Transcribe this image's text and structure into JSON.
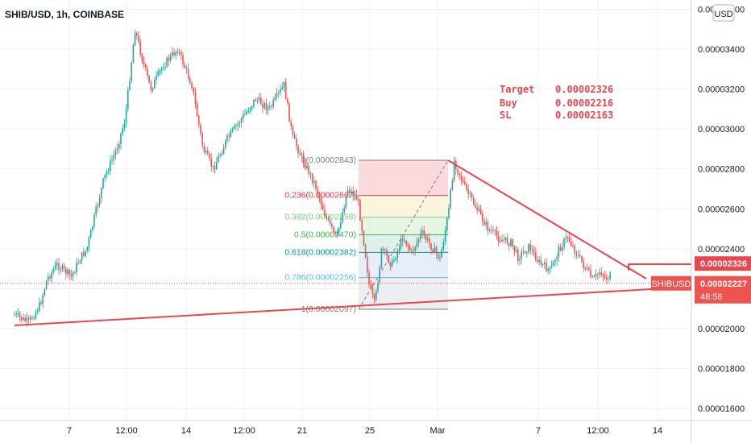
{
  "header": {
    "title": "SHIB/USD, 1h, COINBASE",
    "currency_button": "USD"
  },
  "colors": {
    "up": "#26a69a",
    "down": "#ef5350",
    "trendline": "#e8474f",
    "fib_0": "#787b86",
    "fib_236": "#f23645",
    "fib_382": "#81c784",
    "fib_5": "#4caf50",
    "fib_618": "#089981",
    "fib_786": "#64b5f6",
    "fib_1": "#787b86"
  },
  "annotation": {
    "lines": [
      {
        "label": "Target",
        "value": "0.00002326"
      },
      {
        "label": "Buy",
        "value": "0.00002216"
      },
      {
        "label": "SL",
        "value": "0.00002163"
      }
    ]
  },
  "price_tags": {
    "target": "0.00002326",
    "current": "0.00002227",
    "symbol": "SHIBUSD",
    "countdown": "48:56"
  },
  "chart_data": {
    "type": "candlestick",
    "title": "SHIB/USD, 1h, COINBASE",
    "y_axis": {
      "ylim": [
        1.55e-05,
        3.6e-05
      ],
      "ticks": [
        "0.00001600",
        "0.00001800",
        "0.00002000",
        "0.00002200",
        "0.00002400",
        "0.00002600",
        "0.00002800",
        "0.00003000",
        "0.00003200",
        "0.00003400",
        "0.00003600"
      ],
      "tick_values": [
        1.6e-05,
        1.8e-05,
        2e-05,
        2.2e-05,
        2.4e-05,
        2.6e-05,
        2.8e-05,
        3e-05,
        3.2e-05,
        3.4e-05,
        3.6e-05
      ],
      "position": "right"
    },
    "x_axis": {
      "ticks": [
        "7",
        "12:00",
        "14",
        "12:00",
        "21",
        "25",
        "Mar",
        "7",
        "12:00",
        "14"
      ],
      "tick_days": [
        7,
        10.5,
        14,
        17.5,
        21,
        25,
        29,
        36,
        39.5,
        43
      ]
    },
    "price_path": [
      [
        0,
        2.07e-05
      ],
      [
        1,
        2.03e-05
      ],
      [
        1.8,
        2.12e-05
      ],
      [
        2.3,
        2.25e-05
      ],
      [
        3,
        2.32e-05
      ],
      [
        4,
        2.26e-05
      ],
      [
        4.6,
        2.35e-05
      ],
      [
        5.1,
        2.4e-05
      ],
      [
        6.3,
        2.75e-05
      ],
      [
        7.2,
        2.9e-05
      ],
      [
        7.8,
        3.05e-05
      ],
      [
        8.5,
        3.5e-05
      ],
      [
        9,
        3.35e-05
      ],
      [
        9.6,
        3.2e-05
      ],
      [
        10.5,
        3.32e-05
      ],
      [
        11.5,
        3.4e-05
      ],
      [
        12.5,
        3.22e-05
      ],
      [
        13.3,
        2.9e-05
      ],
      [
        14,
        2.8e-05
      ],
      [
        15,
        2.95e-05
      ],
      [
        16,
        3.05e-05
      ],
      [
        17,
        3.15e-05
      ],
      [
        18,
        3.1e-05
      ],
      [
        19,
        3.22e-05
      ],
      [
        19.6,
        2.96e-05
      ],
      [
        20.3,
        2.85e-05
      ],
      [
        21.2,
        2.72e-05
      ],
      [
        22,
        2.55e-05
      ],
      [
        22.7,
        2.45e-05
      ],
      [
        23.5,
        2.7e-05
      ],
      [
        24.2,
        2.65e-05
      ],
      [
        24.7,
        2.4e-05
      ],
      [
        25,
        2.22e-05
      ],
      [
        25.4,
        2.12e-05
      ],
      [
        25.9,
        2.4e-05
      ],
      [
        26.6,
        2.32e-05
      ],
      [
        27.4,
        2.46e-05
      ],
      [
        28,
        2.38e-05
      ],
      [
        28.7,
        2.48e-05
      ],
      [
        29.4,
        2.41e-05
      ],
      [
        30,
        2.35e-05
      ],
      [
        30.6,
        2.58e-05
      ],
      [
        31,
        2.84e-05
      ],
      [
        31.8,
        2.7e-05
      ],
      [
        32.6,
        2.6e-05
      ],
      [
        33.4,
        2.5e-05
      ],
      [
        34.2,
        2.45e-05
      ],
      [
        35,
        2.43e-05
      ],
      [
        35.5,
        2.36e-05
      ],
      [
        36.3,
        2.41e-05
      ],
      [
        37,
        2.33e-05
      ],
      [
        37.8,
        2.29e-05
      ],
      [
        38.4,
        2.4e-05
      ],
      [
        39,
        2.46e-05
      ],
      [
        39.6,
        2.38e-05
      ],
      [
        40.2,
        2.31e-05
      ],
      [
        40.8,
        2.24e-05
      ],
      [
        41.3,
        2.29e-05
      ],
      [
        41.7,
        2.25e-05
      ],
      [
        42.1,
        2.27e-05
      ]
    ],
    "fibonacci": {
      "x_range": [
        25.2,
        30.8
      ],
      "levels": [
        {
          "ratio": "0",
          "price": "0.00002843",
          "value": 2.843e-05,
          "label": "0(0.00002843)",
          "color": "#787b86",
          "fill": "#f8cdd1"
        },
        {
          "ratio": "0.236",
          "price": "0.00002667",
          "value": 2.667e-05,
          "label": "0.236(0.00002667)",
          "color": "#f23645",
          "fill": "#f8f3d3"
        },
        {
          "ratio": "0.382",
          "price": "0.00002558",
          "value": 2.558e-05,
          "label": "0.382(0.00002558)",
          "color": "#81c784",
          "fill": "#dff1de"
        },
        {
          "ratio": "0.5",
          "price": "0.00002470",
          "value": 2.47e-05,
          "label": "0.5(0.00002470)",
          "color": "#4caf50",
          "fill": "#d4ece6"
        },
        {
          "ratio": "0.618",
          "price": "0.00002382",
          "value": 2.382e-05,
          "label": "0.618(0.00002382)",
          "color": "#089981",
          "fill": "#dde9f7"
        },
        {
          "ratio": "0.786",
          "price": "0.00002256",
          "value": 2.256e-05,
          "label": "0.786(0.00002256)",
          "color": "#64b5f6",
          "fill": "#e7e8ec"
        },
        {
          "ratio": "1",
          "price": "0.00002097",
          "value": 2.097e-05,
          "label": "1(0.00002097)",
          "color": "#787b86",
          "fill": null
        }
      ],
      "diagonal": [
        [
          25.2,
          2.097e-05
        ],
        [
          30.8,
          2.843e-05
        ]
      ]
    },
    "trendlines": [
      {
        "name": "descending-resistance",
        "points": [
          [
            30.8,
            2.843e-05
          ],
          [
            45.8,
            2.24e-05
          ]
        ]
      },
      {
        "name": "ascending-support",
        "points": [
          [
            1,
            2.03e-05
          ],
          [
            46.5,
            2.17e-05
          ]
        ]
      },
      {
        "name": "target-line",
        "points": [
          [
            42.9,
            2.326e-05
          ],
          [
            46.5,
            2.326e-05
          ]
        ]
      }
    ],
    "current_price": 2.227e-05,
    "target_price": 2.326e-05
  }
}
